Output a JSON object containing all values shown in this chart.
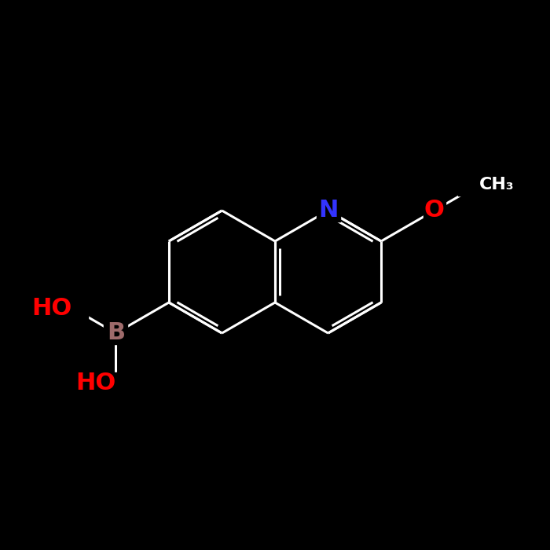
{
  "background_color": "#000000",
  "bond_color": "#ffffff",
  "bond_width": 2.2,
  "atom_colors": {
    "B": "#9e6b6b",
    "N": "#3333ff",
    "O": "#ff0000",
    "C": "#ffffff"
  },
  "font_size_large": 22,
  "font_size_small": 16,
  "figsize": [
    7.0,
    7.0
  ],
  "dpi": 100,
  "xlim": [
    0,
    7
  ],
  "ylim": [
    0,
    7
  ]
}
